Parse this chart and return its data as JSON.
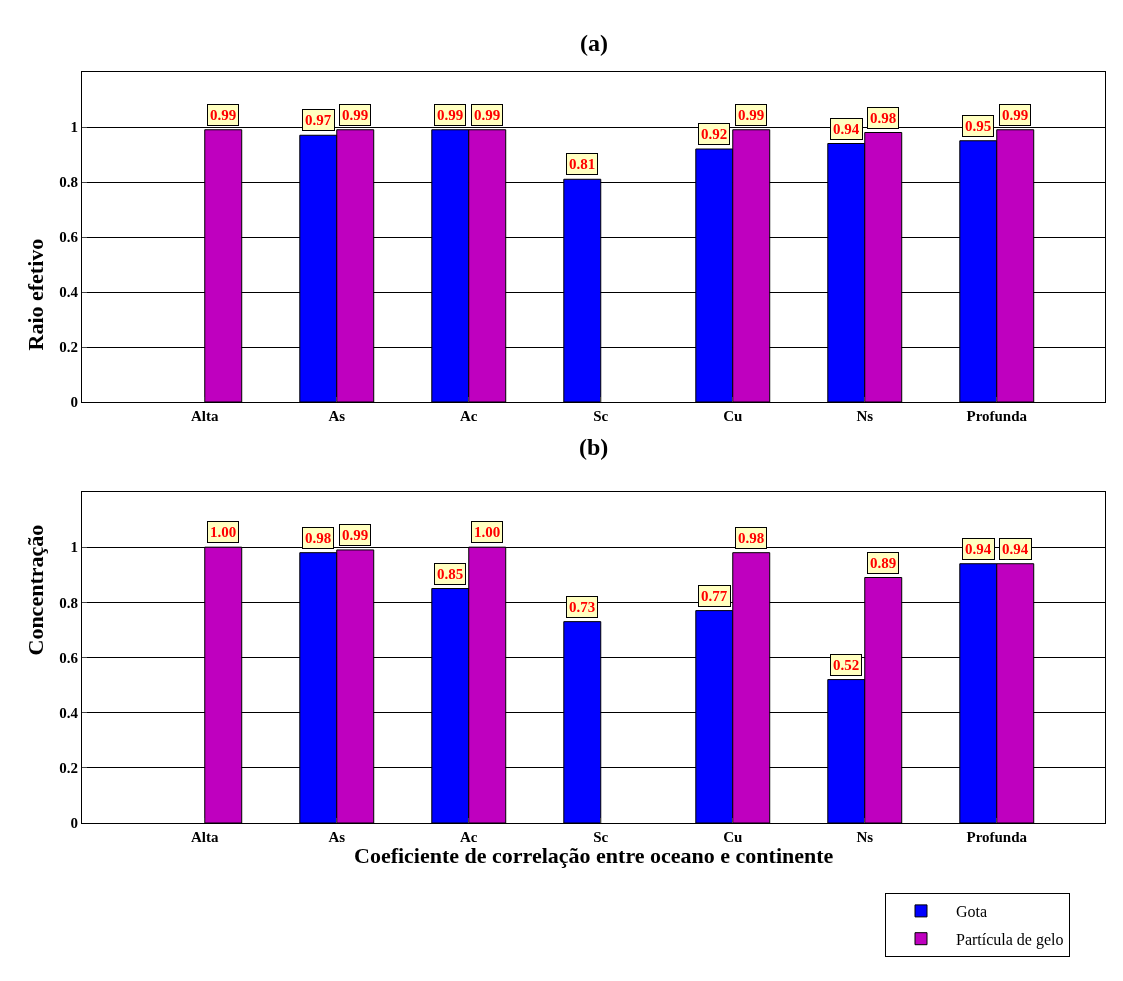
{
  "chart_data": [
    {
      "type": "bar",
      "title": "(a)",
      "ylabel": "Raio efetivo",
      "categories": [
        "Alta",
        "As",
        "Ac",
        "Sc",
        "Cu",
        "Ns",
        "Profunda"
      ],
      "ylim": [
        0,
        1.2
      ],
      "yticks": [
        0,
        0.2,
        0.4,
        0.6,
        0.8,
        1
      ],
      "grid": "y",
      "legend": "bottom right",
      "series": [
        {
          "color": "#0000ff",
          "values": [
            null,
            0.97,
            0.99,
            0.81,
            0.92,
            0.94,
            0.95
          ],
          "value_labels": [
            null,
            "0.97",
            "0.99",
            "0.81",
            "0.92",
            "0.94",
            "0.95"
          ]
        },
        {
          "color": "#bf00bf",
          "values": [
            0.99,
            0.99,
            0.99,
            null,
            0.99,
            0.98,
            0.99
          ],
          "value_labels": [
            "0.99",
            "0.99",
            "0.99",
            null,
            "0.99",
            "0.98",
            "0.99"
          ]
        }
      ]
    },
    {
      "type": "bar",
      "title": "(b)",
      "ylabel": "Concentração",
      "xlabel": "Coeficiente de correlação entre oceano e continente",
      "categories": [
        "Alta",
        "As",
        "Ac",
        "Sc",
        "Cu",
        "Ns",
        "Profunda"
      ],
      "ylim": [
        0,
        1.2
      ],
      "yticks": [
        0,
        0.2,
        0.4,
        0.6,
        0.8,
        1
      ],
      "grid": "y",
      "legend": "bottom right",
      "series": [
        {
          "name": "Gota",
          "color": "#0000ff",
          "values": [
            null,
            0.98,
            0.85,
            0.73,
            0.77,
            0.52,
            0.94
          ],
          "value_labels": [
            null,
            "0.98",
            "0.85",
            "0.73",
            "0.77",
            "0.52",
            "0.94"
          ]
        },
        {
          "name": "Partícula de gelo",
          "color": "#bf00bf",
          "values": [
            1.0,
            0.99,
            1.0,
            null,
            0.98,
            0.89,
            0.94
          ],
          "value_labels": [
            "1.00",
            "0.99",
            "1.00",
            null,
            "0.98",
            "0.89",
            "0.94"
          ]
        }
      ]
    }
  ]
}
